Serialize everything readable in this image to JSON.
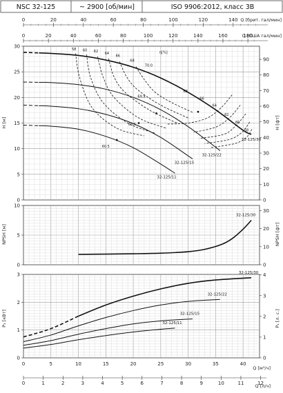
{
  "header": {
    "model": "NSC 32-125",
    "speed": "~ 2900 [об/мин]",
    "standard": "ISO 9906:2012, класс 3B"
  },
  "axes": {
    "top_gb": {
      "title": "Q [брит. гал/мин]",
      "ticks": [
        "0",
        "20",
        "40",
        "60",
        "80",
        "100",
        "120",
        "140"
      ]
    },
    "top_us": {
      "title": "Q [США гал/мин]",
      "ticks": [
        "0",
        "20",
        "40",
        "60",
        "80",
        "100",
        "120",
        "140",
        "160",
        "180"
      ]
    },
    "bottom_m3h": {
      "title": "Q [м³/ч]",
      "ticks": [
        "0",
        "5",
        "10",
        "15",
        "20",
        "25",
        "30",
        "35",
        "40"
      ]
    },
    "bottom_ls": {
      "title": "Q [л/ч]",
      "ticks": [
        "0",
        "1",
        "2",
        "3",
        "4",
        "5",
        "6",
        "7",
        "8",
        "9",
        "10",
        "11",
        "12"
      ]
    },
    "h_m": {
      "title": "H [м]",
      "ticks": [
        "0",
        "5",
        "10",
        "15",
        "20",
        "25",
        "30"
      ]
    },
    "h_ft": {
      "title": "H [фт]",
      "ticks": [
        "0",
        "10",
        "20",
        "30",
        "40",
        "50",
        "60",
        "70",
        "80",
        "90"
      ]
    },
    "npsh_m": {
      "title": "NPSH [м]",
      "ticks": [
        "0",
        "5",
        "10"
      ]
    },
    "npsh_ft": {
      "title": "NPSH [фт]",
      "ticks": [
        "0",
        "10",
        "20",
        "30"
      ]
    },
    "p_kw": {
      "title": "P₁ [кВт]",
      "ticks": [
        "0",
        "1",
        "2",
        "3"
      ]
    },
    "p_hp": {
      "title": "P₁ [л. с.]",
      "ticks": [
        "0",
        "1",
        "2",
        "3",
        "4"
      ]
    }
  },
  "chart_data": [
    {
      "type": "line",
      "xlabel": "Q [м³/ч]",
      "ylabel": "H [м]",
      "xlim": [
        0,
        43
      ],
      "ylim": [
        0,
        30
      ],
      "grid": true,
      "eff_unit": "η[%]",
      "series": [
        {
          "name": "32-125/30",
          "x": [
            0,
            5,
            10,
            15,
            20,
            25,
            30,
            35,
            40,
            41.5
          ],
          "y": [
            28.8,
            28.6,
            28.2,
            27.3,
            25.9,
            23.8,
            21.0,
            17.6,
            13.6,
            12.8
          ],
          "dashed_until": 2.8
        },
        {
          "name": "32-125/22",
          "x": [
            0,
            5,
            10,
            15,
            20,
            25,
            30,
            35,
            35.8
          ],
          "y": [
            23.0,
            22.9,
            22.5,
            21.6,
            20.0,
            17.6,
            14.3,
            10.3,
            9.6
          ],
          "dashed_until": 2.8
        },
        {
          "name": "32-125/15",
          "x": [
            0,
            5,
            10,
            15,
            20,
            25,
            30,
            30.8
          ],
          "y": [
            18.5,
            18.3,
            17.8,
            16.7,
            14.9,
            12.2,
            8.6,
            8.0
          ],
          "dashed_until": 2.8
        },
        {
          "name": "32-125/11",
          "x": [
            0,
            5,
            10,
            15,
            20,
            25,
            27.6
          ],
          "y": [
            14.6,
            14.4,
            13.8,
            12.4,
            10.2,
            7.0,
            5.2
          ],
          "dashed_until": 2.8
        }
      ],
      "efficiency_labels": [
        "58",
        "60",
        "62",
        "64",
        "66",
        "68",
        "70.0",
        "68",
        "66",
        "64",
        "62",
        "60",
        "58",
        "69.9",
        "65.5",
        "60.5"
      ]
    },
    {
      "type": "line",
      "xlabel": "Q [м³/ч]",
      "ylabel": "NPSH [м]",
      "xlim": [
        0,
        43
      ],
      "ylim": [
        0,
        10
      ],
      "grid": true,
      "series": [
        {
          "name": "32-125/30",
          "x": [
            10,
            15,
            20,
            25,
            30,
            33,
            36,
            38,
            40,
            41.5
          ],
          "y": [
            1.75,
            1.8,
            1.85,
            1.95,
            2.2,
            2.6,
            3.4,
            4.4,
            6.0,
            7.5
          ]
        }
      ]
    },
    {
      "type": "line",
      "xlabel": "Q [м³/ч]",
      "ylabel": "P₁ [кВт]",
      "xlim": [
        0,
        43
      ],
      "ylim": [
        0,
        3
      ],
      "grid": true,
      "series": [
        {
          "name": "32-125/30",
          "x": [
            0,
            5,
            10,
            15,
            20,
            25,
            30,
            35,
            41.5
          ],
          "y": [
            0.75,
            1.05,
            1.5,
            1.9,
            2.22,
            2.48,
            2.68,
            2.8,
            2.88
          ],
          "dashed_until": 10
        },
        {
          "name": "32-125/22",
          "x": [
            0,
            5,
            10,
            15,
            20,
            25,
            30,
            35.8
          ],
          "y": [
            0.58,
            0.82,
            1.15,
            1.45,
            1.7,
            1.9,
            2.03,
            2.1
          ]
        },
        {
          "name": "32-125/15",
          "x": [
            0,
            5,
            10,
            15,
            20,
            25,
            30.8
          ],
          "y": [
            0.45,
            0.62,
            0.85,
            1.05,
            1.22,
            1.33,
            1.4
          ]
        },
        {
          "name": "32-125/11",
          "x": [
            0,
            5,
            10,
            15,
            20,
            25,
            27.6
          ],
          "y": [
            0.35,
            0.48,
            0.65,
            0.8,
            0.93,
            1.03,
            1.07
          ]
        }
      ]
    }
  ]
}
